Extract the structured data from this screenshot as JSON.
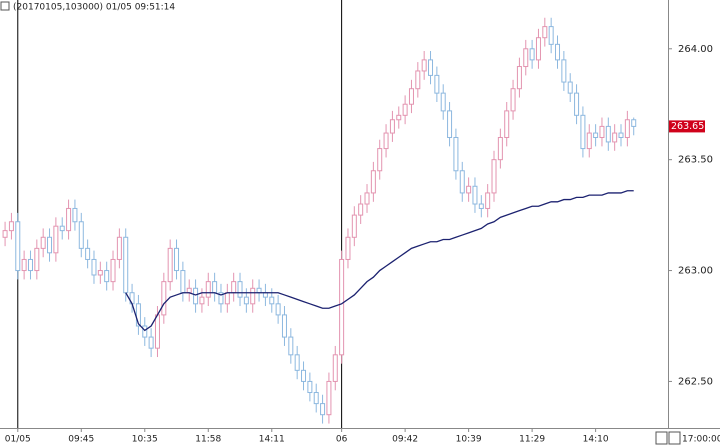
{
  "chart_data": {
    "type": "candlestick",
    "header": "(20170105,103000) 01/05 09:51:14",
    "corner_time": "17:00:00",
    "up_color": "#e394b0",
    "down_color": "#8db8df",
    "ma_color": "#1c2270",
    "xlim": [
      -0.8,
      104.4
    ],
    "ylim": [
      262.29,
      264.22
    ],
    "xticks": [
      {
        "value": 2,
        "label": "01/05"
      },
      {
        "value": 12,
        "label": "09:45"
      },
      {
        "value": 22,
        "label": "10:35"
      },
      {
        "value": 32,
        "label": "11:58"
      },
      {
        "value": 42,
        "label": "14:11"
      },
      {
        "value": 53,
        "label": "06"
      },
      {
        "value": 63,
        "label": "09:42"
      },
      {
        "value": 73,
        "label": "10:39"
      },
      {
        "value": 83,
        "label": "11:29"
      },
      {
        "value": 93,
        "label": "14:10"
      }
    ],
    "yticks": [
      {
        "value": 262.5,
        "label": "262.50"
      },
      {
        "value": 263,
        "label": "263.00"
      },
      {
        "value": 263.5,
        "label": "263.50"
      },
      {
        "value": 264,
        "label": "264.00"
      }
    ],
    "last_price": {
      "value": 263.65,
      "label": "263.65"
    },
    "open": [
      263.15,
      263.18,
      263.22,
      263.0,
      263.05,
      263.0,
      263.1,
      263.15,
      263.08,
      263.2,
      263.18,
      263.28,
      263.22,
      263.1,
      263.05,
      262.98,
      263.0,
      262.95,
      263.05,
      263.15,
      262.9,
      262.85,
      262.75,
      262.7,
      262.65,
      262.8,
      262.95,
      263.1,
      263.0,
      262.9,
      262.92,
      262.85,
      262.88,
      262.95,
      262.9,
      262.85,
      262.9,
      262.95,
      262.88,
      262.85,
      262.92,
      262.9,
      262.88,
      262.85,
      262.8,
      262.7,
      262.62,
      262.55,
      262.5,
      262.45,
      262.4,
      262.35,
      262.5,
      262.62,
      263.05,
      263.15,
      263.25,
      263.3,
      263.35,
      263.45,
      263.55,
      263.62,
      263.68,
      263.7,
      263.75,
      263.82,
      263.9,
      263.95,
      263.88,
      263.8,
      263.72,
      263.6,
      263.45,
      263.35,
      263.38,
      263.3,
      263.28,
      263.35,
      263.5,
      263.6,
      263.72,
      263.82,
      263.92,
      264.0,
      263.95,
      264.05,
      264.1,
      264.02,
      263.95,
      263.85,
      263.8,
      263.7,
      263.55,
      263.62,
      263.6,
      263.65,
      263.58,
      263.62,
      263.6,
      263.68
    ],
    "high": [
      263.22,
      263.26,
      263.26,
      263.09,
      263.09,
      263.14,
      263.19,
      263.19,
      263.24,
      263.24,
      263.32,
      263.32,
      263.26,
      263.14,
      263.09,
      263.04,
      263.04,
      263.09,
      263.19,
      263.19,
      262.94,
      262.89,
      262.79,
      262.74,
      262.84,
      262.99,
      263.14,
      263.14,
      263.04,
      262.96,
      262.96,
      262.92,
      262.99,
      262.99,
      262.94,
      262.94,
      262.99,
      262.99,
      262.92,
      262.96,
      262.96,
      262.94,
      262.92,
      262.89,
      262.84,
      262.74,
      262.66,
      262.59,
      262.54,
      262.49,
      262.44,
      262.54,
      262.66,
      263.09,
      263.19,
      263.29,
      263.34,
      263.39,
      263.49,
      263.59,
      263.66,
      263.72,
      263.74,
      263.79,
      263.86,
      263.94,
      263.99,
      263.99,
      263.92,
      263.84,
      263.76,
      263.64,
      263.49,
      263.42,
      263.42,
      263.34,
      263.39,
      263.54,
      263.64,
      263.76,
      263.86,
      263.96,
      264.04,
      264.04,
      264.09,
      264.14,
      264.14,
      264.06,
      263.99,
      263.89,
      263.84,
      263.74,
      263.66,
      263.66,
      263.69,
      263.69,
      263.66,
      263.66,
      263.72,
      263.69
    ],
    "low": [
      263.11,
      263.14,
      262.96,
      262.96,
      262.96,
      262.96,
      263.06,
      263.04,
      263.04,
      263.14,
      263.14,
      263.18,
      263.06,
      263.01,
      262.94,
      262.94,
      262.91,
      262.91,
      263.01,
      262.86,
      262.81,
      262.71,
      262.66,
      262.61,
      262.61,
      262.76,
      262.91,
      262.96,
      262.86,
      262.86,
      262.81,
      262.81,
      262.84,
      262.86,
      262.81,
      262.81,
      262.86,
      262.84,
      262.81,
      262.81,
      262.86,
      262.84,
      262.81,
      262.76,
      262.66,
      262.58,
      262.51,
      262.46,
      262.41,
      262.36,
      262.31,
      262.31,
      262.46,
      262.58,
      263.01,
      263.11,
      263.21,
      263.26,
      263.31,
      263.41,
      263.51,
      263.58,
      263.64,
      263.66,
      263.71,
      263.78,
      263.86,
      263.84,
      263.76,
      263.68,
      263.56,
      263.41,
      263.31,
      263.31,
      263.26,
      263.24,
      263.24,
      263.31,
      263.46,
      263.56,
      263.68,
      263.78,
      263.88,
      263.91,
      263.91,
      264.01,
      263.98,
      263.91,
      263.81,
      263.76,
      263.66,
      263.51,
      263.51,
      263.56,
      263.56,
      263.54,
      263.54,
      263.56,
      263.56,
      263.61
    ],
    "close": [
      263.18,
      263.22,
      263.0,
      263.05,
      263.0,
      263.1,
      263.15,
      263.08,
      263.2,
      263.18,
      263.28,
      263.22,
      263.1,
      263.05,
      262.98,
      263.0,
      262.95,
      263.05,
      263.15,
      262.9,
      262.85,
      262.75,
      262.7,
      262.65,
      262.8,
      262.95,
      263.1,
      263.0,
      262.9,
      262.92,
      262.85,
      262.88,
      262.95,
      262.9,
      262.85,
      262.9,
      262.95,
      262.88,
      262.85,
      262.92,
      262.9,
      262.88,
      262.85,
      262.8,
      262.7,
      262.62,
      262.55,
      262.5,
      262.45,
      262.4,
      262.35,
      262.5,
      262.62,
      263.05,
      263.15,
      263.25,
      263.3,
      263.35,
      263.45,
      263.55,
      263.62,
      263.68,
      263.7,
      263.75,
      263.82,
      263.9,
      263.95,
      263.88,
      263.8,
      263.72,
      263.6,
      263.45,
      263.35,
      263.38,
      263.3,
      263.28,
      263.35,
      263.5,
      263.6,
      263.72,
      263.82,
      263.92,
      264.0,
      263.95,
      264.05,
      264.1,
      264.02,
      263.95,
      263.85,
      263.8,
      263.7,
      263.55,
      263.62,
      263.6,
      263.65,
      263.58,
      263.62,
      263.6,
      263.68,
      263.65
    ],
    "ma": [
      null,
      null,
      null,
      null,
      null,
      null,
      null,
      null,
      null,
      null,
      null,
      null,
      null,
      null,
      null,
      null,
      null,
      null,
      null,
      262.9,
      262.85,
      262.76,
      262.73,
      262.75,
      262.8,
      262.85,
      262.88,
      262.89,
      262.9,
      262.9,
      262.89,
      262.9,
      262.9,
      262.9,
      262.89,
      262.9,
      262.9,
      262.9,
      262.9,
      262.9,
      262.9,
      262.9,
      262.9,
      262.9,
      262.89,
      262.88,
      262.87,
      262.86,
      262.85,
      262.84,
      262.83,
      262.83,
      262.84,
      262.85,
      262.87,
      262.89,
      262.92,
      262.95,
      262.97,
      263.0,
      263.02,
      263.04,
      263.06,
      263.08,
      263.1,
      263.11,
      263.12,
      263.13,
      263.13,
      263.14,
      263.14,
      263.15,
      263.16,
      263.17,
      263.18,
      263.19,
      263.21,
      263.22,
      263.24,
      263.25,
      263.26,
      263.27,
      263.28,
      263.29,
      263.29,
      263.3,
      263.31,
      263.31,
      263.32,
      263.32,
      263.33,
      263.33,
      263.34,
      263.34,
      263.34,
      263.35,
      263.35,
      263.35,
      263.36,
      263.36
    ]
  }
}
